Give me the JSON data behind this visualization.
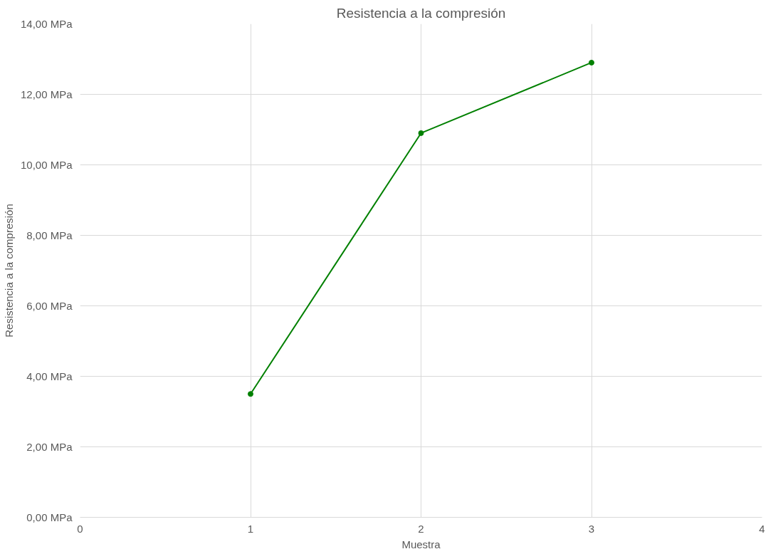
{
  "chart_data": {
    "type": "line",
    "title": "Resistencia a la compresión",
    "xlabel": "Muestra",
    "ylabel": "Resistencia a la compresión",
    "x": [
      1,
      2,
      3
    ],
    "series": [
      {
        "color": "#008000",
        "values": [
          3.5,
          10.9,
          12.9
        ]
      }
    ],
    "xlim": [
      0,
      4
    ],
    "xticks": [
      0,
      1,
      2,
      3,
      4
    ],
    "ylim": [
      0,
      14
    ],
    "yticks": [
      {
        "value": 0,
        "label": "0,00 MPa"
      },
      {
        "value": 2,
        "label": "2,00 MPa"
      },
      {
        "value": 4,
        "label": "4,00 MPa"
      },
      {
        "value": 6,
        "label": "6,00 MPa"
      },
      {
        "value": 8,
        "label": "8,00 MPa"
      },
      {
        "value": 10,
        "label": "10,00 MPa"
      },
      {
        "value": 12,
        "label": "12,00 MPa"
      },
      {
        "value": 14,
        "label": "14,00 MPa"
      }
    ],
    "grid": true,
    "marker": "circle",
    "line_style": "solid"
  }
}
